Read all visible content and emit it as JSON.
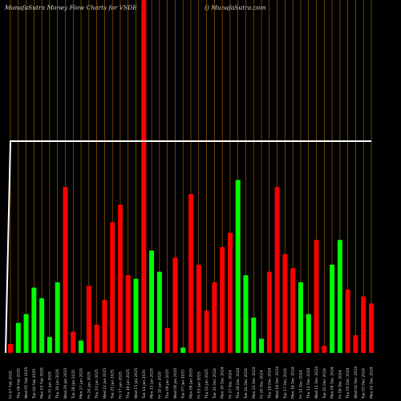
{
  "header": {
    "title": "MunafaSutra  Money Flow  Charts for VSDB",
    "site": "() MunafaSutra.com"
  },
  "colors": {
    "up": "#00ff00",
    "down": "#ff0000",
    "grid": "#b86a00",
    "line": "#ffffff",
    "background": "#000000"
  },
  "chart_data": {
    "type": "bar",
    "ylim": [
      0,
      100
    ],
    "grid": "vertical",
    "categories": [
      "Fri 07 Feb 2025",
      "Thu 06 Feb 2025",
      "Wed 05 Feb 2025",
      "Tue 04 Feb 2025",
      "Mon 03 Feb 2025",
      "Fri 31 Jan 2025",
      "Thu 30 Jan 2025",
      "Wed 29 Jan 2025",
      "Tue 28 Jan 2025",
      "Mon 27 Jan 2025",
      "Fri 24 Jan 2025",
      "Thu 23 Jan 2025",
      "Wed 22 Jan 2025",
      "Tue 21 Jan 2025",
      "Fri 17 Jan 2025",
      "Thu 16 Jan 2025",
      "Wed 15 Jan 2025",
      "Tue 14 Jan 2025",
      "Mon 13 Jan 2025",
      "Fri 10 Jan 2025",
      "Thu 09 Jan 2025",
      "Wed 08 Jan 2025",
      "Tue 07 Jan 2025",
      "Mon 06 Jan 2025",
      "Fri 03 Jan 2025",
      "Thu 02 Jan 2025",
      "Tue 31 Dec 2024",
      "Mon 30 Dec 2024",
      "Fri 27 Dec 2024",
      "Thu 26 Dec 2024",
      "Tue 24 Dec 2024",
      "Mon 23 Dec 2024",
      "Fri 20 Dec 2024",
      "Thu 19 Dec 2024",
      "Wed 18 Dec 2024",
      "Tue 17 Dec 2024",
      "Mon 16 Dec 2024",
      "Fri 13 Dec 2024",
      "Thu 12 Dec 2024",
      "Wed 11 Dec 2024",
      "Tue 10 Dec 2024",
      "Mon 09 Dec 2024",
      "Fri 06 Dec 2024",
      "Thu 05 Dec 2024",
      "Wed 04 Dec 2024",
      "Tue 03 Dec 2024",
      "Mon 02 Dec 2024"
    ],
    "values": [
      2.5,
      8.5,
      11,
      18.5,
      15.5,
      4.5,
      20,
      47,
      6,
      3.5,
      19,
      8,
      15,
      37,
      42,
      22,
      21,
      100,
      29,
      23,
      7,
      27,
      1.5,
      45,
      25,
      12,
      20,
      30,
      34,
      49,
      22,
      10,
      4,
      23,
      47,
      28,
      24,
      20,
      11,
      32,
      2,
      25,
      32,
      18,
      5,
      16,
      14
    ],
    "colors": [
      "down",
      "up",
      "up",
      "up",
      "up",
      "up",
      "up",
      "down",
      "down",
      "up",
      "down",
      "down",
      "down",
      "down",
      "down",
      "down",
      "up",
      "down",
      "up",
      "up",
      "down",
      "down",
      "up",
      "down",
      "down",
      "down",
      "down",
      "down",
      "down",
      "up",
      "up",
      "up",
      "up",
      "down",
      "down",
      "down",
      "down",
      "up",
      "up",
      "down",
      "down",
      "up",
      "up",
      "down",
      "down",
      "down",
      "down"
    ],
    "line_values": [
      60,
      60,
      60,
      60,
      60,
      60,
      60,
      60,
      60,
      60,
      60,
      60,
      60,
      60,
      60,
      60,
      60,
      60,
      60,
      60,
      60,
      60,
      60,
      60,
      60,
      60,
      60,
      60,
      60,
      60,
      60,
      60,
      60,
      60,
      60,
      60,
      60,
      60,
      60,
      60,
      60,
      60,
      60,
      60,
      60,
      60,
      60
    ]
  }
}
